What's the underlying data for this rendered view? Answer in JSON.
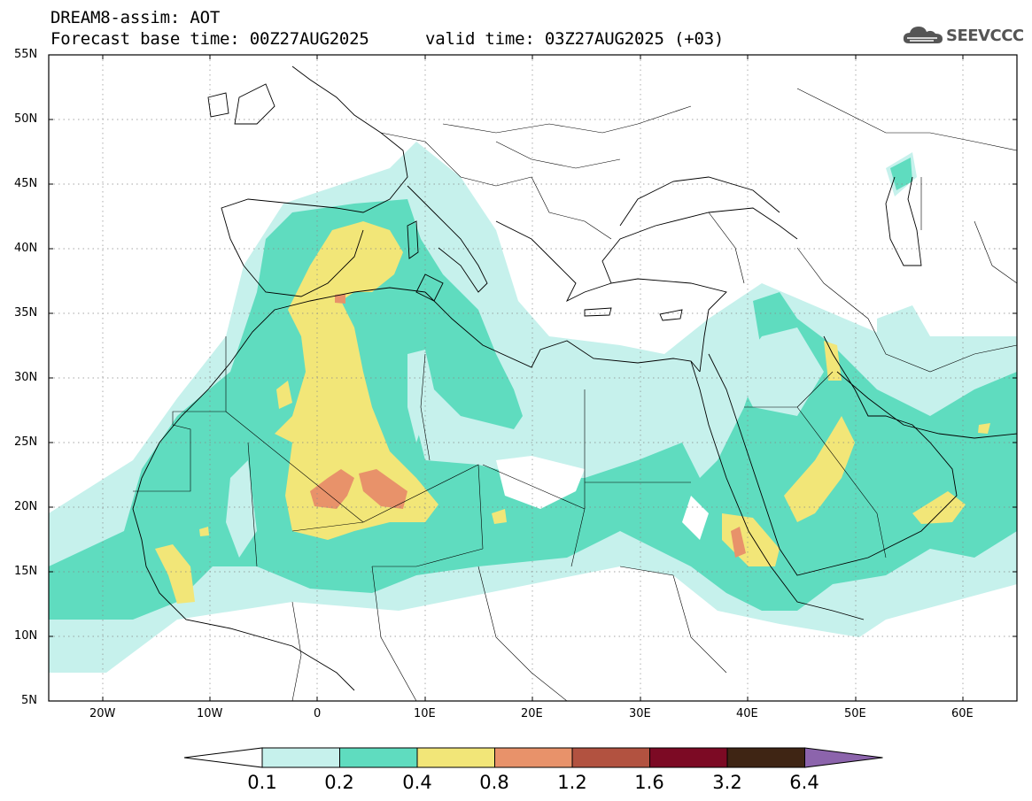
{
  "header": {
    "title": "DREAM8-assim: AOT",
    "base_time": "Forecast base time: 00Z27AUG2025",
    "valid_time": "valid time: 03Z27AUG2025 (+03)",
    "logo_text": "SEEVCCC"
  },
  "map": {
    "region": "North Africa, Mediterranean and Middle East",
    "lon_range": [
      -25,
      65
    ],
    "lat_range": [
      5,
      55
    ],
    "lat_labels": [
      "55N",
      "50N",
      "45N",
      "40N",
      "35N",
      "30N",
      "25N",
      "20N",
      "15N",
      "10N",
      "5N"
    ],
    "lon_labels": [
      "20W",
      "10W",
      "0",
      "10E",
      "20E",
      "30E",
      "40E",
      "50E",
      "60E"
    ],
    "variable": "AOT"
  },
  "colorbar": {
    "levels": [
      "0.1",
      "0.2",
      "0.4",
      "0.8",
      "1.2",
      "1.6",
      "3.2",
      "6.4"
    ],
    "colors": [
      "#ffffff",
      "#c6f1ec",
      "#5fdcbf",
      "#f2e678",
      "#e8926a",
      "#b25240",
      "#7c0a24",
      "#3f2514",
      "#8c64ac"
    ]
  }
}
